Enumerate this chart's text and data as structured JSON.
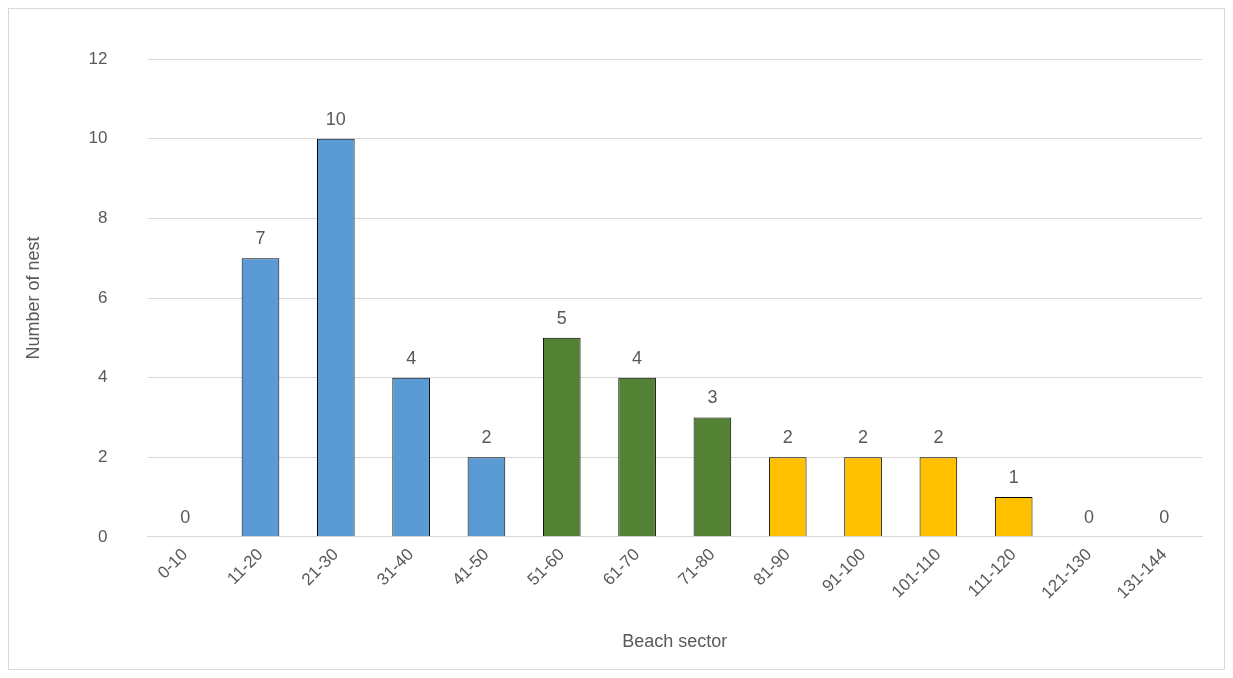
{
  "chart_data": {
    "type": "bar",
    "xlabel": "Beach sector",
    "ylabel": "Number of nest",
    "categories": [
      "0-10",
      "11-20",
      "21-30",
      "31-40",
      "41-50",
      "51-60",
      "61-70",
      "71-80",
      "81-90",
      "91-100",
      "101-110",
      "111-120",
      "121-130",
      "131-144"
    ],
    "values": [
      0,
      7,
      10,
      4,
      2,
      5,
      4,
      3,
      2,
      2,
      2,
      1,
      0,
      0
    ],
    "colors": [
      "#5b9bd5",
      "#5b9bd5",
      "#5b9bd5",
      "#5b9bd5",
      "#5b9bd5",
      "#548235",
      "#548235",
      "#548235",
      "#ffc000",
      "#ffc000",
      "#ffc000",
      "#ffc000",
      "#ffc000",
      "#ffc000"
    ],
    "ylim": [
      0,
      12
    ],
    "yticks": [
      0,
      2,
      4,
      6,
      8,
      10,
      12
    ],
    "grid": "y",
    "legend": false,
    "data_labels": true
  }
}
